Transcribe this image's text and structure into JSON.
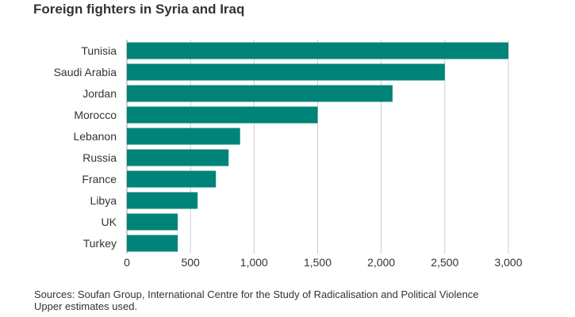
{
  "chart_data": {
    "type": "bar",
    "orientation": "horizontal",
    "title": "Foreign fighters in Syria and Iraq",
    "categories": [
      "Tunisia",
      "Saudi Arabia",
      "Jordan",
      "Morocco",
      "Lebanon",
      "Russia",
      "France",
      "Libya",
      "UK",
      "Turkey"
    ],
    "values": [
      3000,
      2500,
      2089,
      1500,
      890,
      800,
      700,
      556,
      400,
      400
    ],
    "xlim": [
      0,
      3000
    ],
    "xticks": [
      0,
      500,
      1000,
      1500,
      2000,
      2500,
      3000
    ],
    "xtick_labels": [
      "0",
      "500",
      "1,000",
      "1,500",
      "2,000",
      "2,500",
      "3,000"
    ],
    "xlabel": "",
    "ylabel": "",
    "grid": "vertical",
    "legend": "none",
    "bar_color": "#008379"
  },
  "footer": {
    "source": "Sources: Soufan Group, International Centre for the Study of Radicalisation and Political Violence",
    "note": "Upper estimates used."
  }
}
